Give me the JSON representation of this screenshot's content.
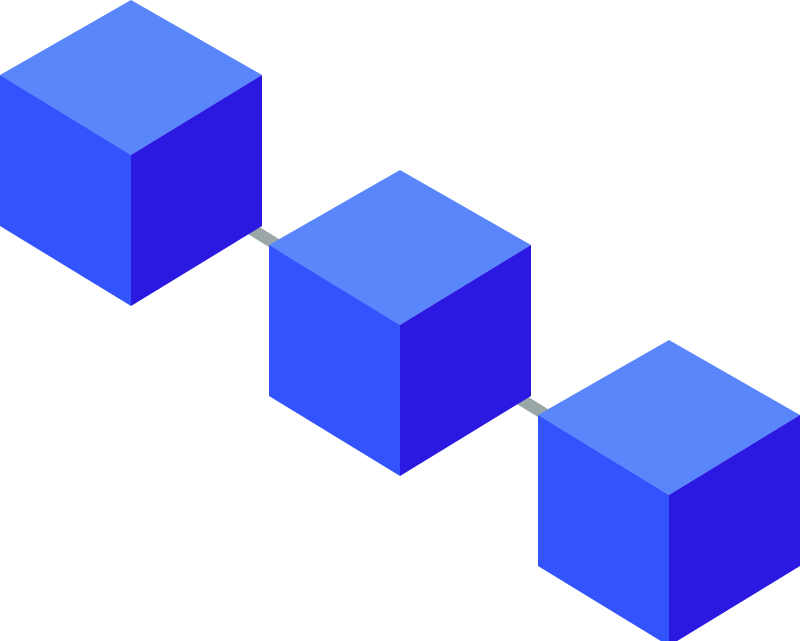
{
  "illustration": {
    "subject": "blockchain-blocks",
    "block_count": 3,
    "link_count": 2,
    "colors": {
      "background": "#ffffff",
      "cube_top": "#5a86fb",
      "cube_left": "#3354fd",
      "cube_right": "#2b18e1",
      "link": "#9aa7a6"
    }
  }
}
